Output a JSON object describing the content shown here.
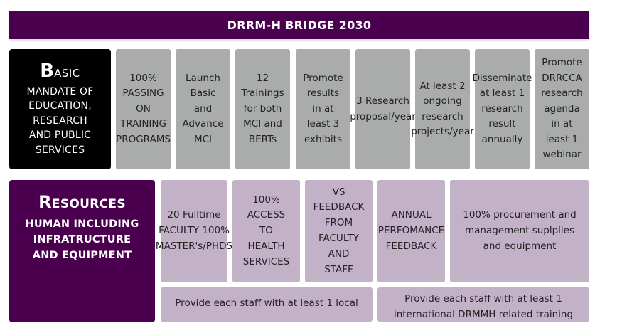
{
  "banner": {
    "title": "DRRM-H BRIDGE 2030"
  },
  "basic": {
    "initial": "B",
    "rest": "ASIC",
    "subtitle_lines": [
      "MANDATE OF",
      "EDUCATION,",
      "RESEARCH",
      "AND PUBLIC",
      "SERVICES"
    ]
  },
  "basic_cards": [
    "100%\nPASSING\nON\nTRAINING\nPROGRAMS",
    "Launch\nBasic\nand\nAdvance\nMCI",
    "12\nTrainings\nfor both\nMCI and\nBERTs",
    "Promote\nresults\nin at\nleast 3\nexhibits",
    "3 Research\nproposal/year",
    "At least 2\nongoing\nresearch\nprojects/year",
    "Disseminate\nat least 1\nresearch\nresult\nannually",
    "Promote\nDRRCCA\nresearch\nagenda\nin at\nleast 1\nwebinar"
  ],
  "resources": {
    "initial": "R",
    "rest": "ESOURCES",
    "subtitle_lines": [
      "HUMAN INCLUDING",
      "INFRATRUCTURE",
      "AND EQUIPMENT"
    ]
  },
  "resource_cards": [
    "20 Fulltime\nFACULTY 100%\nMASTER's/PHDS",
    "100%\nACCESS\nTO\nHEALTH\nSERVICES",
    "VS\nFEEDBACK\nFROM\nFACULTY\nAND\nSTAFF",
    "ANNUAL\nPERFOMANCE\nFEEDBACK",
    "100% procurement and\nmanagement suplplies\nand equipment"
  ],
  "resource_cards_row2": [
    "Provide each staff with at least 1 local",
    "Provide each staff with at least 1\ninternational DRMMH related training"
  ],
  "colors": {
    "purple_dark": "#4b004f",
    "black": "#000000",
    "gray_card": "#a9acab",
    "lilac_card": "#c3b1c8"
  }
}
